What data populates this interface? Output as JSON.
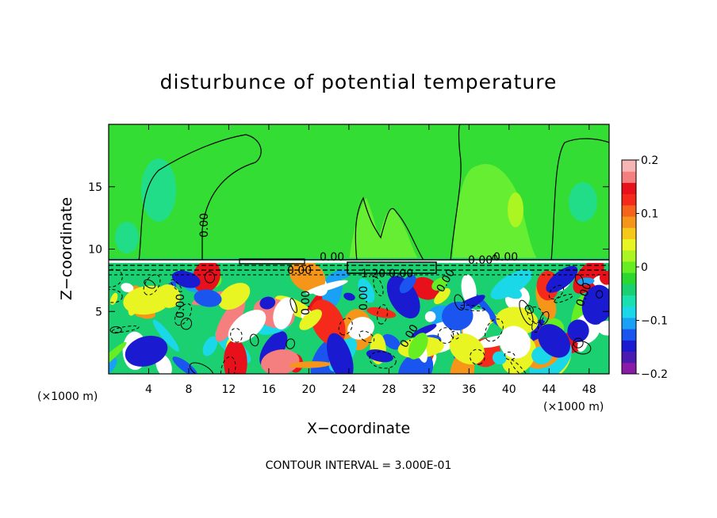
{
  "chart_data": {
    "type": "heatmap",
    "title": "disturbunce of potential temperature",
    "xlabel": "X−coordinate",
    "ylabel": "Z−coordinate",
    "x_unit": "(×1000 m)",
    "x_unit_right": "(×1000 m)",
    "x_ticks": [
      4,
      8,
      12,
      16,
      20,
      24,
      28,
      32,
      36,
      40,
      44,
      48
    ],
    "y_ticks": [
      5,
      10,
      15
    ],
    "xlim": [
      0,
      50
    ],
    "ylim": [
      0,
      20
    ],
    "colorbar": {
      "ticks": [
        0.2,
        0.1,
        0,
        -0.1,
        -0.2
      ],
      "tick_labels": [
        "0.2",
        "0.1",
        "0",
        "−0.1",
        "−0.2"
      ],
      "range": [
        -0.2,
        0.2
      ],
      "colors": [
        "#8a1aa8",
        "#4b1ab0",
        "#1a1ad0",
        "#1a55f0",
        "#1aa0f5",
        "#1ad8e8",
        "#1ae0b0",
        "#1ad070",
        "#2ad830",
        "#66ee22",
        "#aaf522",
        "#e8f522",
        "#f5c81a",
        "#f5961a",
        "#f5641a",
        "#f52a1a",
        "#e8101a",
        "#f57f7f",
        "#f5b5b5"
      ]
    },
    "contour_labels": [
      "0.00",
      "0.00",
      "0.00",
      "0.00",
      "1.20",
      "0.00",
      "0.00",
      "0.00",
      "0.00",
      "0.00",
      "0.00",
      "0.00",
      "0.00"
    ],
    "contour_interval": "CONTOUR INTERVAL =  3.000E-01"
  }
}
